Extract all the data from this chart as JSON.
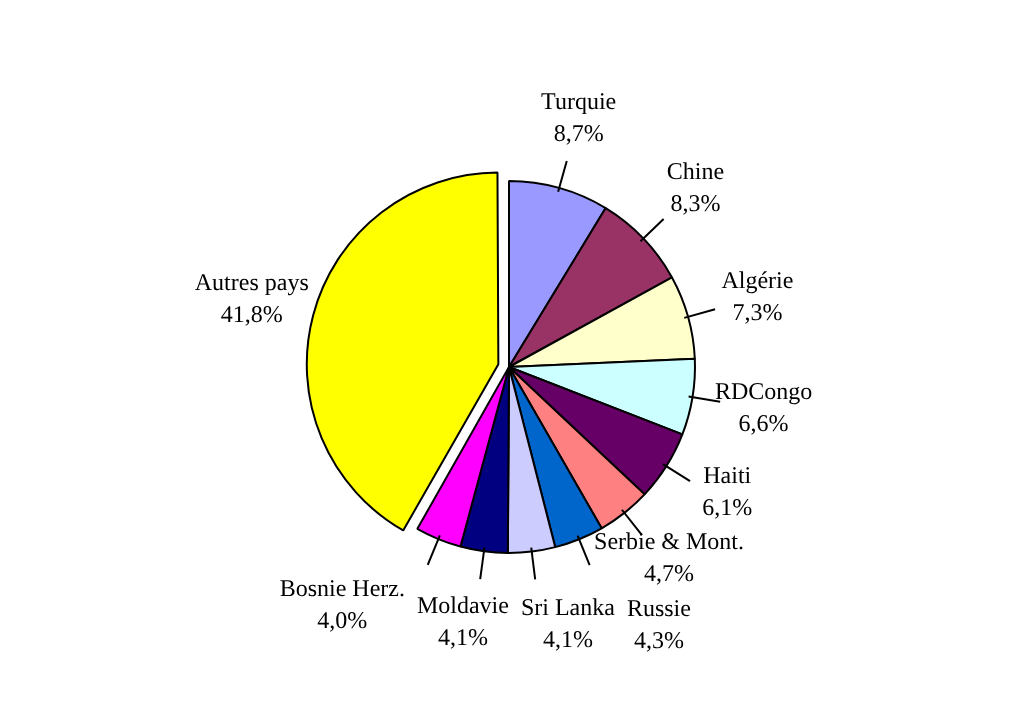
{
  "chart_data": {
    "type": "pie",
    "categories": [
      "Turquie",
      "Chine",
      "Algérie",
      "RDCongo",
      "Haiti",
      "Serbie & Mont.",
      "Russie",
      "Sri Lanka",
      "Moldavie",
      "Bosnie Herz.",
      "Autres pays"
    ],
    "values": [
      8.7,
      8.3,
      7.3,
      6.6,
      6.1,
      4.7,
      4.3,
      4.1,
      4.1,
      4.0,
      41.8
    ],
    "colors": [
      "#9999ff",
      "#993366",
      "#ffffcc",
      "#ccffff",
      "#660066",
      "#ff8080",
      "#0066cc",
      "#ccccff",
      "#000080",
      "#ff00ff",
      "#ffff00"
    ],
    "value_labels": [
      "8,7%",
      "8,3%",
      "7,3%",
      "6,6%",
      "6,1%",
      "4,7%",
      "4,3%",
      "4,1%",
      "4,1%",
      "4,0%",
      "41,8%"
    ]
  }
}
